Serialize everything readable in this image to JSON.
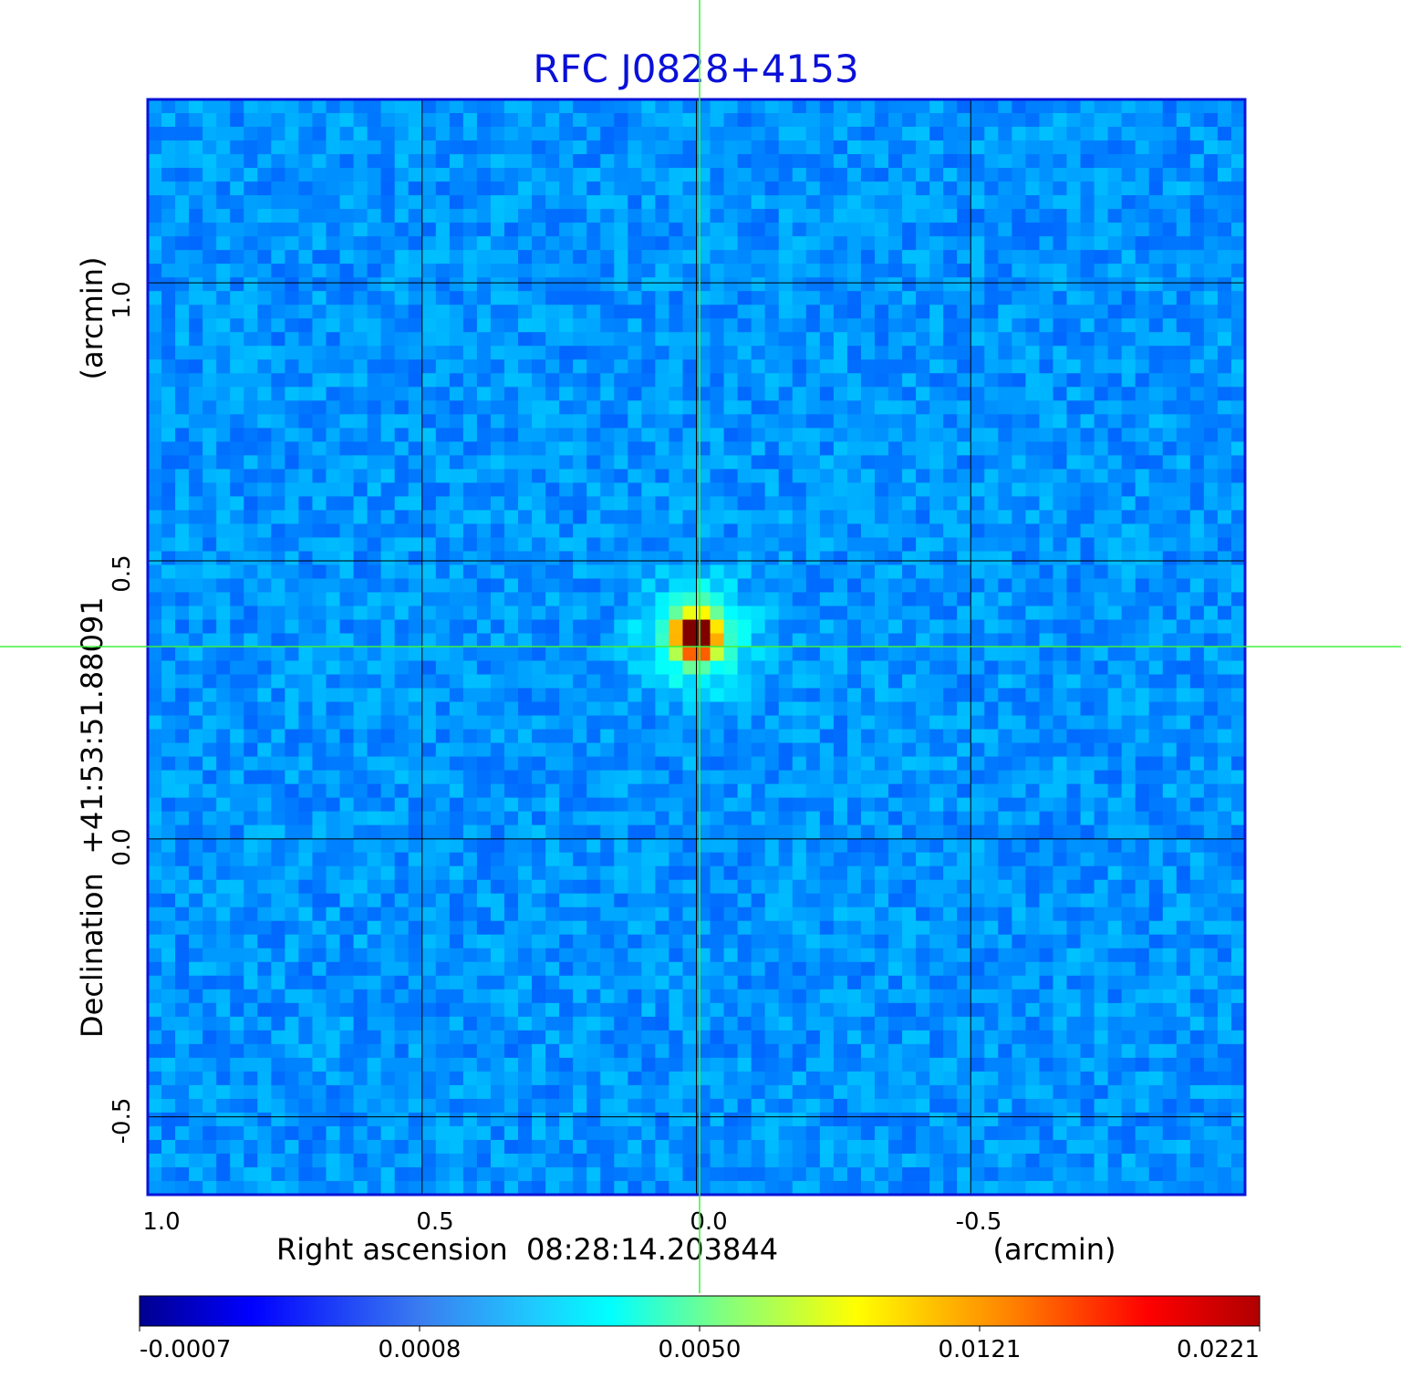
{
  "chart_data": {
    "type": "heatmap",
    "title": "RFC J0828+4153",
    "xlabel": "Right ascension  08:28:14.203844",
    "xunit": "(arcmin)",
    "ylabel": "Declination  +41:53:51.88091",
    "yunit": "(arcmin)",
    "xlim": [
      1.0,
      -1.0
    ],
    "ylim": [
      -0.64,
      1.33
    ],
    "x_ticks": [
      "1.0",
      "0.5",
      "0.0",
      "-0.5"
    ],
    "x_tick_values": [
      1.0,
      0.5,
      0.0,
      -0.5
    ],
    "y_ticks": [
      "-0.5",
      "0.0",
      "0.5",
      "1.0"
    ],
    "y_tick_values": [
      -0.5,
      0.0,
      0.5,
      1.0
    ],
    "grid": true,
    "source_position": {
      "x": 0.0,
      "y": 0.365
    },
    "peak_value": 0.0221,
    "background_value": -0.0001,
    "colorbar": {
      "colormap": "jet",
      "tick_labels": [
        "-0.0007",
        "0.0008",
        "0.0050",
        "0.0121",
        "0.0221"
      ],
      "tick_values": [
        -0.0007,
        0.0008,
        0.005,
        0.0121,
        0.0221
      ]
    }
  },
  "colors": {
    "title": "#0a10d8",
    "frame": "#0b14d9",
    "grid": "#000000",
    "crosshair": "#3ef03e"
  }
}
